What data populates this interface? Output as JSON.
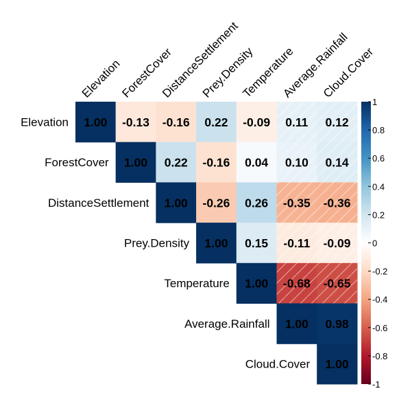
{
  "chart_data": {
    "type": "heatmap",
    "subtype": "correlation-matrix-upper-triangle",
    "variables": [
      "Elevation",
      "ForestCover",
      "DistanceSettlement",
      "Prey.Density",
      "Temperature",
      "Average.Rainfall",
      "Cloud.Cover"
    ],
    "matrix": [
      [
        1.0,
        -0.13,
        -0.16,
        0.22,
        -0.09,
        0.11,
        0.12
      ],
      [
        null,
        1.0,
        0.22,
        -0.16,
        0.04,
        0.1,
        0.14
      ],
      [
        null,
        null,
        1.0,
        -0.26,
        0.26,
        -0.35,
        -0.36
      ],
      [
        null,
        null,
        null,
        1.0,
        0.15,
        -0.11,
        -0.09
      ],
      [
        null,
        null,
        null,
        null,
        1.0,
        -0.68,
        -0.65
      ],
      [
        null,
        null,
        null,
        null,
        null,
        1.0,
        0.98
      ],
      [
        null,
        null,
        null,
        null,
        null,
        null,
        1.0
      ]
    ],
    "value_labels": [
      [
        "1.00",
        "-0.13",
        "-0.16",
        "0.22",
        "-0.09",
        "0.11",
        "0.12"
      ],
      [
        null,
        "1.00",
        "0.22",
        "-0.16",
        "0.04",
        "0.10",
        "0.14"
      ],
      [
        null,
        null,
        "1.00",
        "-0.26",
        "0.26",
        "-0.35",
        "-0.36"
      ],
      [
        null,
        null,
        null,
        "1.00",
        "0.15",
        "-0.11",
        "-0.09"
      ],
      [
        null,
        null,
        null,
        null,
        "1.00",
        "-0.68",
        "-0.65"
      ],
      [
        null,
        null,
        null,
        null,
        null,
        "1.00",
        "0.98"
      ],
      [
        null,
        null,
        null,
        null,
        null,
        null,
        "1.00"
      ]
    ],
    "insignificant_marked": [
      [
        false,
        false,
        false,
        false,
        false,
        true,
        true
      ],
      [
        null,
        false,
        false,
        false,
        false,
        true,
        true
      ],
      [
        null,
        null,
        false,
        false,
        false,
        true,
        true
      ],
      [
        null,
        null,
        null,
        false,
        false,
        true,
        true
      ],
      [
        null,
        null,
        null,
        null,
        false,
        true,
        true
      ],
      [
        null,
        null,
        null,
        null,
        null,
        false,
        false
      ],
      [
        null,
        null,
        null,
        null,
        null,
        null,
        false
      ]
    ],
    "color_scale": {
      "min": -1,
      "max": 1,
      "ticks": [
        1,
        0.8,
        0.6,
        0.4,
        0.2,
        0,
        -0.2,
        -0.4,
        -0.6,
        -0.8,
        -1
      ],
      "tick_labels": [
        "1",
        "0.8",
        "0.6",
        "0.4",
        "0.2",
        "0",
        "-0.2",
        "-0.4",
        "-0.6",
        "-0.8",
        "-1"
      ],
      "stops": [
        {
          "value": -1,
          "color": "#67001F"
        },
        {
          "value": -0.8,
          "color": "#B2182B"
        },
        {
          "value": -0.6,
          "color": "#D6604D"
        },
        {
          "value": -0.4,
          "color": "#F4A582"
        },
        {
          "value": -0.2,
          "color": "#FDDBC7"
        },
        {
          "value": 0,
          "color": "#FFFFFF"
        },
        {
          "value": 0.2,
          "color": "#D1E5F0"
        },
        {
          "value": 0.4,
          "color": "#92C5DE"
        },
        {
          "value": 0.6,
          "color": "#4393C3"
        },
        {
          "value": 0.8,
          "color": "#2166AC"
        },
        {
          "value": 1,
          "color": "#053061"
        }
      ]
    },
    "legend_placement": "right"
  }
}
